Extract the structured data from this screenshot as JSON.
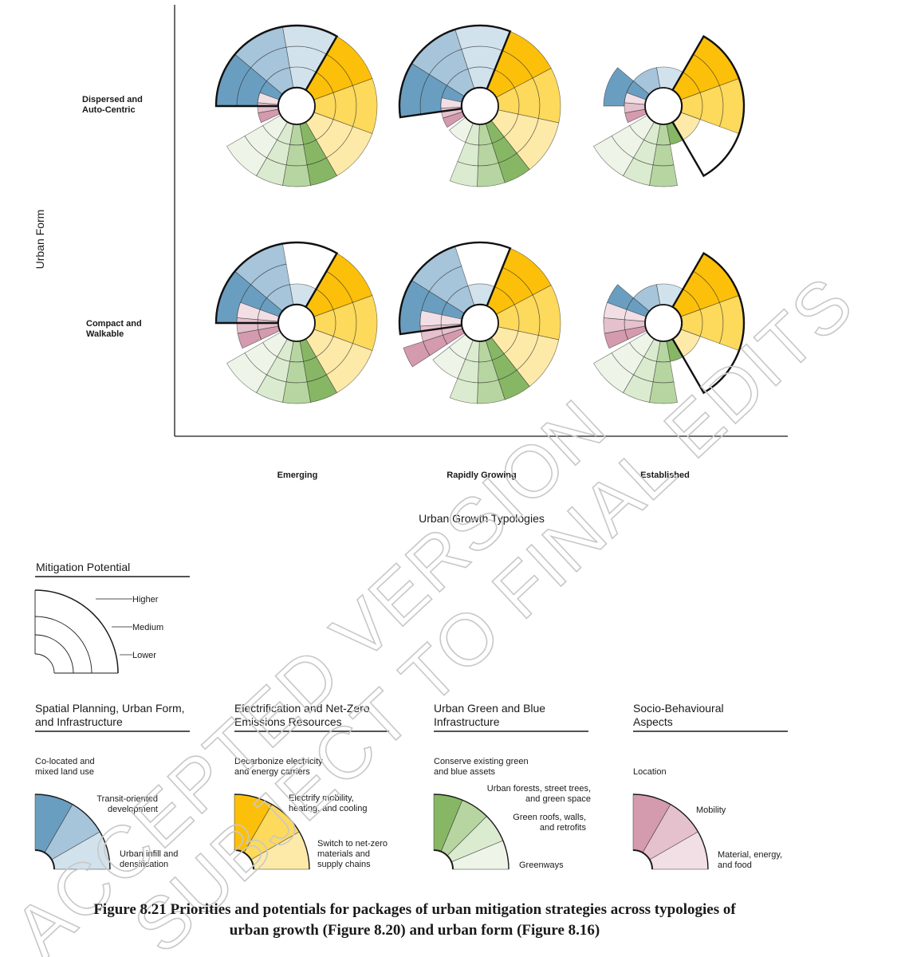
{
  "diagram": {
    "y_axis_title": "Urban Form",
    "x_axis_title": "Urban Growth Typologies",
    "rows": [
      "Dispersed and\nAuto-Centric",
      "Compact and\nWalkable"
    ],
    "columns": [
      "Emerging",
      "Rapidly Growing",
      "Established"
    ],
    "sector_order": [
      "Co-located and mixed land use",
      "Transit-oriented development",
      "Urban infill and densification",
      "Decarbonize electricity and energy carriers",
      "Electrify mobility, heating, and cooling",
      "Switch to net-zero materials and supply chains",
      "Conserve existing green and blue assets",
      "Urban forests, street trees, and green space",
      "Green roofs, walls, and retrofits",
      "Greenways",
      "Location",
      "Mobility",
      "Material, energy, and food"
    ],
    "levels_note": "0 = none, 1 = Lower, 2 = Medium, 3 = Higher",
    "cells": [
      {
        "row": 0,
        "col": 0,
        "levels": [
          3,
          3,
          3,
          3,
          3,
          3,
          3,
          3,
          3,
          3,
          1,
          1,
          1
        ],
        "highlight": [
          0,
          1,
          2
        ]
      },
      {
        "row": 0,
        "col": 1,
        "levels": [
          3,
          3,
          3,
          3,
          3,
          3,
          3,
          3,
          3,
          1,
          1,
          1,
          1
        ],
        "highlight": [
          0,
          1,
          2
        ]
      },
      {
        "row": 0,
        "col": 2,
        "levels": [
          2,
          1,
          1,
          3,
          3,
          1,
          1,
          3,
          3,
          3,
          1,
          1,
          1
        ],
        "highlight": [
          3,
          4,
          5
        ]
      },
      {
        "row": 1,
        "col": 0,
        "levels": [
          3,
          3,
          1,
          3,
          3,
          3,
          3,
          3,
          3,
          3,
          2,
          2,
          2
        ],
        "highlight": [
          0,
          1,
          2
        ]
      },
      {
        "row": 1,
        "col": 1,
        "levels": [
          3,
          3,
          1,
          3,
          3,
          3,
          3,
          3,
          3,
          2,
          3,
          2,
          2
        ],
        "highlight": [
          0,
          1,
          2
        ]
      },
      {
        "row": 1,
        "col": 2,
        "levels": [
          2,
          1,
          1,
          3,
          3,
          1,
          1,
          3,
          3,
          3,
          2,
          2,
          2
        ],
        "highlight": [
          3,
          4,
          5
        ]
      }
    ],
    "colors": {
      "blue": [
        "#6a9ec0",
        "#a6c4da",
        "#d2e2ec"
      ],
      "yellow": [
        "#fcc00a",
        "#fdd95c",
        "#feeaa8"
      ],
      "green": [
        "#87b765",
        "#b7d5a1",
        "#dbebcf",
        "#eef5e8"
      ],
      "pink": [
        "#d49aae",
        "#e5c0cd",
        "#f2dfe5"
      ]
    }
  },
  "legend": {
    "potential_title": "Mitigation Potential",
    "potential_levels": [
      "Higher",
      "Medium",
      "Lower"
    ],
    "groups": [
      {
        "title": "Spatial Planning, Urban Form,\nand Infrastructure",
        "items": [
          "Co-located and\nmixed land use",
          "Transit-oriented\ndevelopment",
          "Urban infill and\ndensification"
        ]
      },
      {
        "title": "Electrification and Net-Zero\nEmissions Resources",
        "items": [
          "Decarbonize electricity\nand energy carriers",
          "Electrify mobility,\nheating, and cooling",
          "Switch to net-zero\nmaterials and\nsupply chains"
        ]
      },
      {
        "title": "Urban Green and Blue\nInfrastructure",
        "items": [
          "Conserve existing green\nand blue assets",
          "Urban forests, street trees,\nand green space",
          "Green roofs, walls,\nand retrofits",
          "Greenways"
        ]
      },
      {
        "title": "Socio-Behavioural\nAspects",
        "items": [
          "Location",
          "Mobility",
          "Material, energy,\nand food"
        ]
      }
    ]
  },
  "watermark": [
    "ACCEPTED VERSION",
    "SUBJECT TO FINAL EDITS"
  ],
  "caption": "Figure 8.21 Priorities and potentials for packages of urban mitigation strategies across typologies of\nurban growth (Figure 8.20) and urban form (Figure 8.16)"
}
